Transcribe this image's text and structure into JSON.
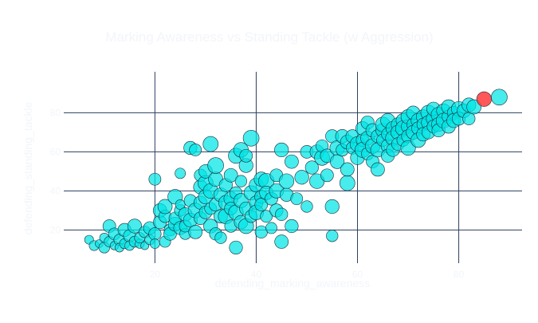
{
  "colors": {
    "background": "#ffffff",
    "plot_background": "#ffffff",
    "grid": "#2a3f5f",
    "text": "#f2f5fa",
    "bubble": "#00e5e5",
    "bubble_stroke": "#1a2a3a",
    "highlight": "#ff3b3b"
  },
  "chart_data": {
    "type": "scatter",
    "title": "Marking Awareness vs Standing Tackle (w Aggression)",
    "xlabel": "defending_marking_awareness",
    "ylabel": "defending_standing_tackle",
    "x_ticks": [
      20,
      40,
      60,
      80
    ],
    "y_ticks": [
      20,
      40,
      60,
      80
    ],
    "xlim": [
      2,
      92.5
    ],
    "ylim": [
      3,
      101
    ],
    "grid": true,
    "size_encoding": "aggression",
    "series": [
      {
        "color": "#00e5e5",
        "points": [
          [
            7,
            15,
            40
          ],
          [
            8,
            12,
            45
          ],
          [
            9,
            13,
            35
          ],
          [
            10,
            11,
            50
          ],
          [
            10,
            16,
            42
          ],
          [
            11,
            22,
            60
          ],
          [
            11,
            14,
            48
          ],
          [
            12,
            12,
            38
          ],
          [
            12,
            18,
            55
          ],
          [
            13,
            15,
            52
          ],
          [
            13,
            11,
            40
          ],
          [
            14,
            13,
            46
          ],
          [
            14,
            20,
            62
          ],
          [
            15,
            17,
            58
          ],
          [
            15,
            12,
            44
          ],
          [
            16,
            14,
            50
          ],
          [
            16,
            22,
            66
          ],
          [
            17,
            13,
            42
          ],
          [
            17,
            16,
            48
          ],
          [
            18,
            12,
            36
          ],
          [
            18,
            19,
            54
          ],
          [
            19,
            15,
            46
          ],
          [
            19,
            21,
            60
          ],
          [
            20,
            18,
            58
          ],
          [
            20,
            13,
            44
          ],
          [
            20,
            46,
            56
          ],
          [
            21,
            24,
            62
          ],
          [
            21,
            30,
            64
          ],
          [
            22,
            14,
            52
          ],
          [
            22,
            27,
            58
          ],
          [
            22,
            32,
            68
          ],
          [
            23,
            20,
            56
          ],
          [
            23,
            18,
            60
          ],
          [
            24,
            23,
            66
          ],
          [
            24,
            26,
            58
          ],
          [
            24,
            37,
            70
          ],
          [
            25,
            21,
            62
          ],
          [
            25,
            30,
            54
          ],
          [
            25,
            49,
            48
          ],
          [
            25,
            33,
            44
          ],
          [
            26,
            28,
            64
          ],
          [
            26,
            18,
            52
          ],
          [
            26,
            22,
            56
          ],
          [
            27,
            25,
            66
          ],
          [
            27,
            62,
            62
          ],
          [
            27,
            35,
            58
          ],
          [
            28,
            30,
            70
          ],
          [
            28,
            61,
            56
          ],
          [
            28,
            19,
            64
          ],
          [
            29,
            26,
            60
          ],
          [
            29,
            34,
            62
          ],
          [
            29,
            42,
            66
          ],
          [
            29,
            48,
            58
          ],
          [
            30,
            37,
            68
          ],
          [
            30,
            44,
            72
          ],
          [
            30,
            29,
            60
          ],
          [
            30,
            50,
            64
          ],
          [
            31,
            22,
            66
          ],
          [
            31,
            31,
            56
          ],
          [
            31,
            40,
            70
          ],
          [
            31,
            64,
            72
          ],
          [
            32,
            33,
            62
          ],
          [
            32,
            46,
            68
          ],
          [
            32,
            53,
            76
          ],
          [
            32,
            18,
            58
          ],
          [
            33,
            27,
            64
          ],
          [
            33,
            38,
            66
          ],
          [
            33,
            16,
            54
          ],
          [
            34,
            34,
            68
          ],
          [
            34,
            43,
            62
          ],
          [
            34,
            27,
            72
          ],
          [
            35,
            22,
            58
          ],
          [
            35,
            36,
            66
          ],
          [
            35,
            48,
            64
          ],
          [
            35,
            31,
            60
          ],
          [
            36,
            29,
            70
          ],
          [
            36,
            58,
            72
          ],
          [
            36,
            39,
            58
          ],
          [
            36,
            11,
            62
          ],
          [
            37,
            24,
            64
          ],
          [
            37,
            35,
            68
          ],
          [
            37,
            45,
            54
          ],
          [
            37,
            61,
            70
          ],
          [
            38,
            31,
            62
          ],
          [
            38,
            53,
            66
          ],
          [
            38,
            22,
            72
          ],
          [
            38,
            58,
            60
          ],
          [
            39,
            39,
            68
          ],
          [
            39,
            27,
            58
          ],
          [
            39,
            67,
            76
          ],
          [
            40,
            34,
            64
          ],
          [
            40,
            43,
            66
          ],
          [
            40,
            29,
            70
          ],
          [
            41,
            19,
            58
          ],
          [
            41,
            37,
            62
          ],
          [
            41,
            46,
            68
          ],
          [
            41,
            33,
            60
          ],
          [
            42,
            45,
            74
          ],
          [
            42,
            27,
            56
          ],
          [
            42,
            39,
            64
          ],
          [
            43,
            21,
            52
          ],
          [
            43,
            36,
            60
          ],
          [
            44,
            30,
            62
          ],
          [
            44,
            40,
            68
          ],
          [
            44,
            48,
            60
          ],
          [
            45,
            61,
            66
          ],
          [
            45,
            14,
            64
          ],
          [
            45,
            28,
            58
          ],
          [
            46,
            45,
            70
          ],
          [
            46,
            38,
            62
          ],
          [
            47,
            55,
            64
          ],
          [
            47,
            22,
            62
          ],
          [
            48,
            36,
            56
          ],
          [
            49,
            47,
            66
          ],
          [
            50,
            60,
            60
          ],
          [
            50,
            32,
            54
          ],
          [
            51,
            52,
            62
          ],
          [
            52,
            45,
            70
          ],
          [
            52,
            60,
            66
          ],
          [
            53,
            57,
            72
          ],
          [
            53,
            63,
            58
          ],
          [
            54,
            58,
            64
          ],
          [
            54,
            48,
            60
          ],
          [
            55,
            68,
            62
          ],
          [
            55,
            32,
            66
          ],
          [
            55,
            17,
            54
          ],
          [
            56,
            62,
            70
          ],
          [
            56,
            55,
            66
          ],
          [
            57,
            68,
            64
          ],
          [
            57,
            61,
            58
          ],
          [
            58,
            65,
            66
          ],
          [
            58,
            44,
            72
          ],
          [
            58,
            51,
            64
          ],
          [
            59,
            62,
            58
          ],
          [
            59,
            68,
            62
          ],
          [
            60,
            64,
            70
          ],
          [
            60,
            57,
            66
          ],
          [
            61,
            66,
            60
          ],
          [
            61,
            72,
            64
          ],
          [
            61,
            61,
            72
          ],
          [
            62,
            67,
            66
          ],
          [
            62,
            59,
            58
          ],
          [
            62,
            75,
            62
          ],
          [
            63,
            63,
            70
          ],
          [
            63,
            71,
            64
          ],
          [
            63,
            55,
            60
          ],
          [
            64,
            68,
            62
          ],
          [
            64,
            61,
            68
          ],
          [
            64,
            51,
            64
          ],
          [
            65,
            71,
            66
          ],
          [
            65,
            66,
            58
          ],
          [
            65,
            74,
            70
          ],
          [
            66,
            63,
            64
          ],
          [
            66,
            69,
            60
          ],
          [
            66,
            76,
            68
          ],
          [
            66,
            58,
            62
          ],
          [
            67,
            72,
            66
          ],
          [
            67,
            67,
            70
          ],
          [
            67,
            61,
            62
          ],
          [
            68,
            74,
            64
          ],
          [
            68,
            70,
            68
          ],
          [
            68,
            64,
            60
          ],
          [
            69,
            76,
            66
          ],
          [
            69,
            72,
            72
          ],
          [
            69,
            66,
            58
          ],
          [
            70,
            73,
            64
          ],
          [
            70,
            78,
            68
          ],
          [
            70,
            68,
            62
          ],
          [
            70,
            62,
            70
          ],
          [
            71,
            74,
            60
          ],
          [
            71,
            70,
            66
          ],
          [
            71,
            80,
            64
          ],
          [
            72,
            76,
            68
          ],
          [
            72,
            72,
            62
          ],
          [
            72,
            66,
            70
          ],
          [
            73,
            78,
            66
          ],
          [
            73,
            74,
            60
          ],
          [
            73,
            69,
            64
          ],
          [
            74,
            80,
            72
          ],
          [
            74,
            75,
            66
          ],
          [
            74,
            70,
            62
          ],
          [
            75,
            77,
            68
          ],
          [
            75,
            73,
            60
          ],
          [
            75,
            82,
            64
          ],
          [
            76,
            79,
            70
          ],
          [
            76,
            74,
            66
          ],
          [
            76,
            71,
            62
          ],
          [
            77,
            81,
            66
          ],
          [
            77,
            76,
            70
          ],
          [
            78,
            78,
            62
          ],
          [
            78,
            83,
            68
          ],
          [
            78,
            73,
            64
          ],
          [
            79,
            80,
            60
          ],
          [
            79,
            76,
            66
          ],
          [
            80,
            82,
            70
          ],
          [
            80,
            77,
            62
          ],
          [
            81,
            81,
            64
          ],
          [
            82,
            84,
            66
          ],
          [
            82,
            77,
            58
          ],
          [
            83,
            83,
            68
          ],
          [
            88,
            88,
            76
          ]
        ]
      },
      {
        "color": "#ff3b3b",
        "points": [
          [
            85,
            87,
            70
          ]
        ]
      }
    ]
  }
}
